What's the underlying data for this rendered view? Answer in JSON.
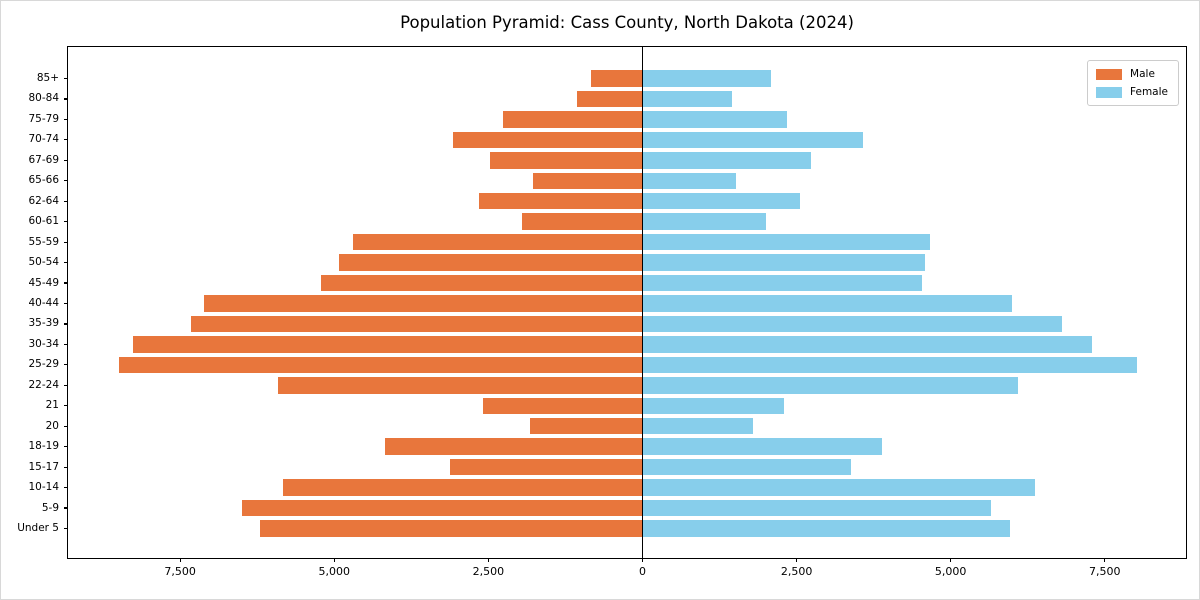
{
  "title": "Population Pyramid: Cass County, North Dakota (2024)",
  "legend": {
    "male_label": "Male",
    "female_label": "Female"
  },
  "colors": {
    "male": "#e8763c",
    "female": "#87ceeb",
    "axis": "#000000",
    "legend_border": "#cccccc",
    "background": "#ffffff"
  },
  "chart_data": {
    "type": "bar",
    "subtype": "population-pyramid",
    "orientation": "horizontal",
    "title": "Population Pyramid: Cass County, North Dakota (2024)",
    "xlabel": "",
    "ylabel": "",
    "grid": false,
    "legend_position": "upper right",
    "categories_top_to_bottom": [
      "85+",
      "80-84",
      "75-79",
      "70-74",
      "67-69",
      "65-66",
      "62-64",
      "60-61",
      "55-59",
      "50-54",
      "45-49",
      "40-44",
      "35-39",
      "30-34",
      "25-29",
      "22-24",
      "21",
      "20",
      "18-19",
      "15-17",
      "10-14",
      "5-9",
      "Under 5"
    ],
    "series": [
      {
        "name": "Male",
        "side": "left",
        "color": "#e8763c",
        "values": [
          830,
          1070,
          2260,
          3070,
          2470,
          1770,
          2660,
          1950,
          4690,
          4930,
          5210,
          7110,
          7320,
          8260,
          8490,
          5910,
          2580,
          1830,
          4170,
          3130,
          5840,
          6490,
          6200
        ]
      },
      {
        "name": "Female",
        "side": "right",
        "color": "#87ceeb",
        "values": [
          2080,
          1460,
          2340,
          3570,
          2730,
          1510,
          2560,
          2010,
          4660,
          4580,
          4540,
          5990,
          6800,
          7300,
          8020,
          6090,
          2290,
          1800,
          3880,
          3380,
          6360,
          5650,
          5960
        ]
      }
    ],
    "x_axis": {
      "xlim": [
        -9320,
        8850
      ],
      "ticks": [
        -7500,
        -5000,
        -2500,
        0,
        2500,
        5000,
        7500
      ],
      "tick_labels": [
        "7,500",
        "5,000",
        "2,500",
        "0",
        "2,500",
        "5,000",
        "7,500"
      ]
    }
  }
}
